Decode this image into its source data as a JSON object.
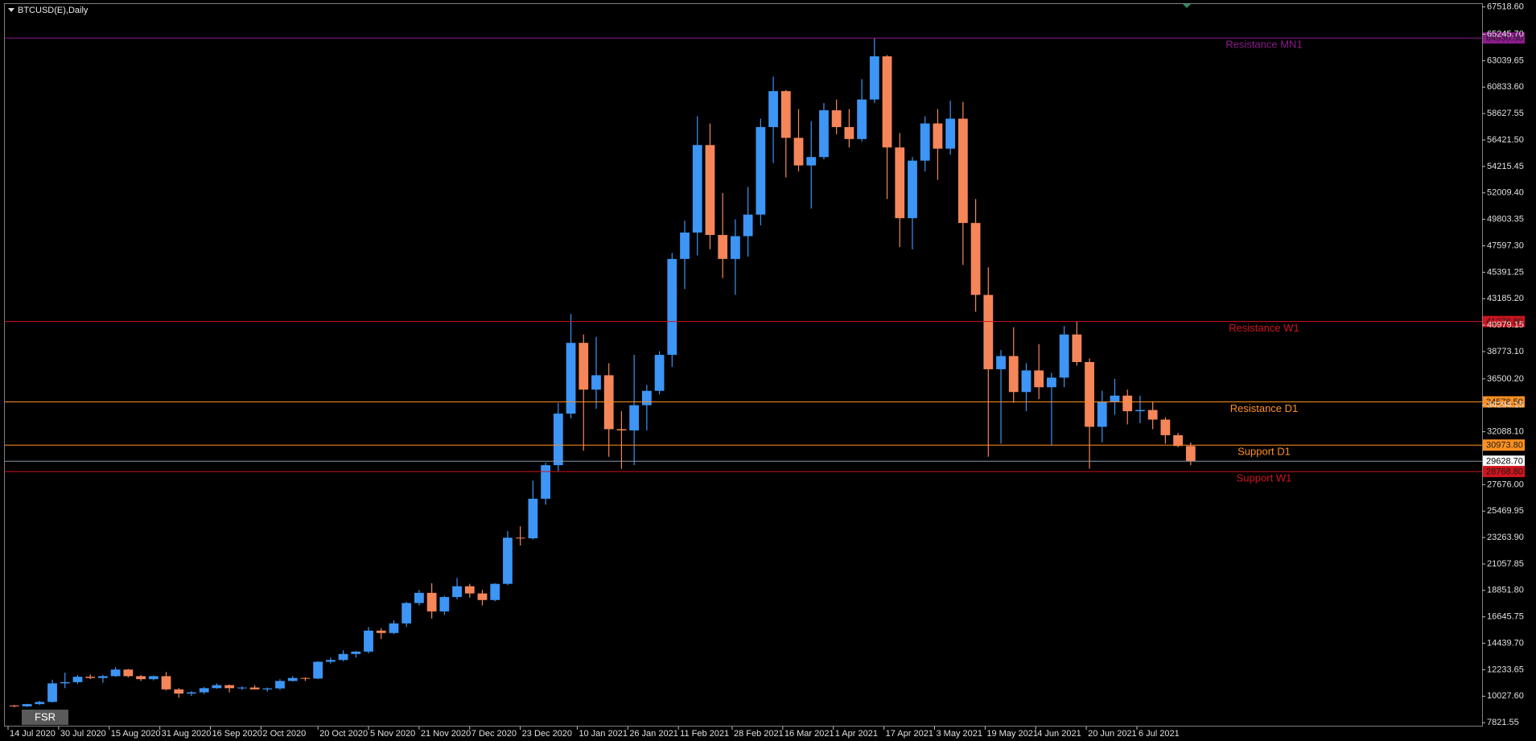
{
  "chart_data": {
    "type": "candlestick",
    "title": "BTCUSD(E),Daily",
    "up_color": "#3d95f5",
    "down_color": "#f5865a",
    "x": [
      "14 Jul 2020",
      "18 Jul 2020",
      "22 Jul 2020",
      "26 Jul 2020",
      "30 Jul 2020",
      "3 Aug 2020",
      "7 Aug 2020",
      "11 Aug 2020",
      "15 Aug 2020",
      "19 Aug 2020",
      "23 Aug 2020",
      "27 Aug 2020",
      "31 Aug 2020",
      "4 Sep 2020",
      "8 Sep 2020",
      "12 Sep 2020",
      "16 Sep 2020",
      "20 Sep 2020",
      "24 Sep 2020",
      "28 Sep 2020",
      "2 Oct 2020",
      "6 Oct 2020",
      "10 Oct 2020",
      "14 Oct 2020",
      "18 Oct 2020",
      "22 Oct 2020",
      "26 Oct 2020",
      "30 Oct 2020",
      "3 Nov 2020",
      "7 Nov 2020",
      "11 Nov 2020",
      "15 Nov 2020",
      "19 Nov 2020",
      "23 Nov 2020",
      "27 Nov 2020",
      "1 Dec 2020",
      "5 Dec 2020",
      "9 Dec 2020",
      "13 Dec 2020",
      "17 Dec 2020",
      "21 Dec 2020",
      "25 Dec 2020",
      "29 Dec 2020",
      "2 Jan 2021",
      "6 Jan 2021",
      "10 Jan 2021",
      "14 Jan 2021",
      "18 Jan 2021",
      "22 Jan 2021",
      "26 Jan 2021",
      "30 Jan 2021",
      "3 Feb 2021",
      "7 Feb 2021",
      "11 Feb 2021",
      "15 Feb 2021",
      "19 Feb 2021",
      "23 Feb 2021",
      "27 Feb 2021",
      "3 Mar 2021",
      "7 Mar 2021",
      "11 Mar 2021",
      "15 Mar 2021",
      "19 Mar 2021",
      "23 Mar 2021",
      "27 Mar 2021",
      "31 Mar 2021",
      "4 Apr 2021",
      "8 Apr 2021",
      "12 Apr 2021",
      "16 Apr 2021",
      "20 Apr 2021",
      "24 Apr 2021",
      "28 Apr 2021",
      "2 May 2021",
      "6 May 2021",
      "10 May 2021",
      "14 May 2021",
      "18 May 2021",
      "22 May 2021",
      "26 May 2021",
      "30 May 2021",
      "3 Jun 2021",
      "7 Jun 2021",
      "11 Jun 2021",
      "15 Jun 2021",
      "19 Jun 2021",
      "23 Jun 2021",
      "27 Jun 2021",
      "1 Jul 2021",
      "5 Jul 2021",
      "9 Jul 2021",
      "13 Jul 2021",
      "17 Jul 2021",
      "21 Jul 2021"
    ],
    "ohlc": [
      [
        9250,
        9300,
        9100,
        9180
      ],
      [
        9180,
        9400,
        9130,
        9370
      ],
      [
        9370,
        9650,
        9300,
        9550
      ],
      [
        9550,
        11400,
        9500,
        11100
      ],
      [
        11100,
        12000,
        10700,
        11200
      ],
      [
        11200,
        11800,
        11050,
        11650
      ],
      [
        11650,
        11850,
        11450,
        11550
      ],
      [
        11550,
        11800,
        11150,
        11700
      ],
      [
        11700,
        12450,
        11650,
        12250
      ],
      [
        12250,
        12300,
        11600,
        11700
      ],
      [
        11700,
        11800,
        11300,
        11450
      ],
      [
        11450,
        11750,
        11350,
        11700
      ],
      [
        11700,
        12050,
        10500,
        10600
      ],
      [
        10600,
        10700,
        9900,
        10250
      ],
      [
        10250,
        10450,
        10050,
        10350
      ],
      [
        10350,
        10800,
        10200,
        10700
      ],
      [
        10700,
        11100,
        10650,
        10950
      ],
      [
        10950,
        11000,
        10350,
        10700
      ],
      [
        10700,
        10850,
        10550,
        10750
      ],
      [
        10750,
        10950,
        10600,
        10600
      ],
      [
        10600,
        10750,
        10400,
        10680
      ],
      [
        10680,
        11450,
        10550,
        11300
      ],
      [
        11300,
        11700,
        11250,
        11550
      ],
      [
        11550,
        11600,
        11300,
        11500
      ],
      [
        11500,
        12950,
        11450,
        12900
      ],
      [
        12900,
        13250,
        12750,
        13050
      ],
      [
        13050,
        13850,
        12950,
        13550
      ],
      [
        13550,
        13800,
        13250,
        13750
      ],
      [
        13750,
        15800,
        13600,
        15500
      ],
      [
        15500,
        15700,
        14800,
        15300
      ],
      [
        15300,
        16350,
        15200,
        16100
      ],
      [
        16100,
        17900,
        15800,
        17800
      ],
      [
        17800,
        18900,
        17600,
        18650
      ],
      [
        18650,
        19450,
        16500,
        17100
      ],
      [
        17100,
        18400,
        16800,
        18300
      ],
      [
        18300,
        19900,
        18100,
        19200
      ],
      [
        19200,
        19400,
        18250,
        18600
      ],
      [
        18600,
        18900,
        17600,
        18050
      ],
      [
        18050,
        19450,
        17950,
        19400
      ],
      [
        19400,
        23800,
        19300,
        23250
      ],
      [
        23250,
        24200,
        22600,
        23200
      ],
      [
        23200,
        28000,
        23100,
        26500
      ],
      [
        26500,
        29500,
        26000,
        29300
      ],
      [
        29300,
        34500,
        28800,
        33600
      ],
      [
        33600,
        41900,
        33200,
        39500
      ],
      [
        39500,
        40200,
        30500,
        35600
      ],
      [
        35600,
        40000,
        34000,
        36800
      ],
      [
        36800,
        37800,
        30000,
        32300
      ],
      [
        32300,
        33800,
        29000,
        32200
      ],
      [
        32200,
        38500,
        29300,
        34300
      ],
      [
        34300,
        36000,
        32200,
        35500
      ],
      [
        35500,
        38800,
        35200,
        38500
      ],
      [
        38500,
        47000,
        37500,
        46500
      ],
      [
        46500,
        49700,
        44000,
        48700
      ],
      [
        48700,
        58400,
        46800,
        56000
      ],
      [
        56000,
        57800,
        47300,
        48500
      ],
      [
        48500,
        52000,
        44900,
        46500
      ],
      [
        46500,
        49800,
        43500,
        48400
      ],
      [
        48400,
        52500,
        46700,
        50200
      ],
      [
        50200,
        58200,
        49300,
        57500
      ],
      [
        57500,
        61700,
        54500,
        60500
      ],
      [
        60500,
        60600,
        53300,
        56600
      ],
      [
        56600,
        59000,
        53800,
        54300
      ],
      [
        54300,
        58000,
        50700,
        55000
      ],
      [
        55000,
        59500,
        54800,
        58900
      ],
      [
        58900,
        59800,
        56900,
        57500
      ],
      [
        57500,
        59000,
        55800,
        56500
      ],
      [
        56500,
        61500,
        56300,
        59800
      ],
      [
        59800,
        64900,
        59500,
        63400
      ],
      [
        63400,
        63500,
        51500,
        55800
      ],
      [
        55800,
        57000,
        47500,
        49900
      ],
      [
        49900,
        55000,
        47300,
        54700
      ],
      [
        54700,
        58400,
        53800,
        57800
      ],
      [
        57800,
        59000,
        53100,
        55700
      ],
      [
        55700,
        59700,
        55200,
        58200
      ],
      [
        58200,
        59600,
        46000,
        49500
      ],
      [
        49500,
        51500,
        42100,
        43500
      ],
      [
        43500,
        45800,
        30000,
        37300
      ],
      [
        37300,
        38900,
        31100,
        38400
      ],
      [
        38400,
        40800,
        34500,
        35400
      ],
      [
        35400,
        37800,
        33800,
        37200
      ],
      [
        37200,
        39400,
        34800,
        35800
      ],
      [
        35800,
        37000,
        31000,
        36600
      ],
      [
        36600,
        40900,
        35800,
        40200
      ],
      [
        40200,
        41300,
        37600,
        37900
      ],
      [
        37900,
        38200,
        29000,
        32500
      ],
      [
        32500,
        35500,
        31200,
        34600
      ],
      [
        34600,
        36500,
        33500,
        35100
      ],
      [
        35100,
        35600,
        32700,
        33800
      ],
      [
        33800,
        35100,
        32800,
        33900
      ],
      [
        33900,
        34600,
        32300,
        33100
      ],
      [
        33100,
        33300,
        31100,
        31800
      ],
      [
        31800,
        32000,
        30800,
        30900
      ],
      [
        30900,
        31200,
        29300,
        29628.7
      ]
    ],
    "ylim": [
      7500,
      67830
    ],
    "yticks": [
      {
        "value": 67518.6,
        "label": "67518.60"
      },
      {
        "value": 65245.7,
        "label": "65245.70"
      },
      {
        "value": 63039.65,
        "label": "63039.65"
      },
      {
        "value": 60833.6,
        "label": "60833.60"
      },
      {
        "value": 58627.55,
        "label": "58627.55"
      },
      {
        "value": 56421.5,
        "label": "56421.50"
      },
      {
        "value": 54215.45,
        "label": "54215.45"
      },
      {
        "value": 52009.4,
        "label": "52009.40"
      },
      {
        "value": 49803.35,
        "label": "49803.35"
      },
      {
        "value": 47597.3,
        "label": "47597.30"
      },
      {
        "value": 45391.25,
        "label": "45391.25"
      },
      {
        "value": 43185.2,
        "label": "43185.20"
      },
      {
        "value": 40979.15,
        "label": "40979.15"
      },
      {
        "value": 38773.1,
        "label": "38773.10"
      },
      {
        "value": 36500.2,
        "label": "36500.20"
      },
      {
        "value": 34294.15,
        "label": "34294.15"
      },
      {
        "value": 32088.1,
        "label": "32088.10"
      },
      {
        "value": 27676,
        "label": "27676.00"
      },
      {
        "value": 25469.95,
        "label": "25469.95"
      },
      {
        "value": 23263.9,
        "label": "23263.90"
      },
      {
        "value": 21057.85,
        "label": "21057.85"
      },
      {
        "value": 18851.8,
        "label": "18851.80"
      },
      {
        "value": 16645.75,
        "label": "16645.75"
      },
      {
        "value": 14439.7,
        "label": "14439.70"
      },
      {
        "value": 12233.65,
        "label": "12233.65"
      },
      {
        "value": 10027.6,
        "label": "10027.60"
      },
      {
        "value": 7821.55,
        "label": "7821.55"
      }
    ],
    "xticks": [
      "14 Jul 2020",
      "30 Jul 2020",
      "15 Aug 2020",
      "31 Aug 2020",
      "16 Sep 2020",
      "2 Oct 2020",
      "20 Oct 2020",
      "5 Nov 2020",
      "21 Nov 2020",
      "7 Dec 2020",
      "23 Dec 2020",
      "10 Jan 2021",
      "26 Jan 2021",
      "11 Feb 2021",
      "28 Feb 2021",
      "16 Mar 2021",
      "1 Apr 2021",
      "17 Apr 2021",
      "3 May 2021",
      "19 May 2021",
      "4 Jun 2021",
      "20 Jun 2021",
      "6 Jul 2021"
    ],
    "levels": [
      {
        "name": "Resistance MN1",
        "value": 64930.5,
        "value_label": "64930.50",
        "color": "#8b1a8b"
      },
      {
        "name": "Resistance W1",
        "value": 41278.8,
        "value_label": "41278.80",
        "color": "#d0141e"
      },
      {
        "name": "Resistance D1",
        "value": 34578.5,
        "value_label": "34578.50",
        "color": "#ff9020"
      },
      {
        "name": "Support D1",
        "value": 30973.8,
        "value_label": "30973.80",
        "color": "#ff9020"
      },
      {
        "name": "Support W1",
        "value": 28768.8,
        "value_label": "28768.80",
        "color": "#d0141e"
      }
    ],
    "current_price": {
      "value": 29628.7,
      "value_label": "29628.70",
      "color": "#8899a6"
    }
  },
  "toolbar": {
    "button": "FSR"
  }
}
